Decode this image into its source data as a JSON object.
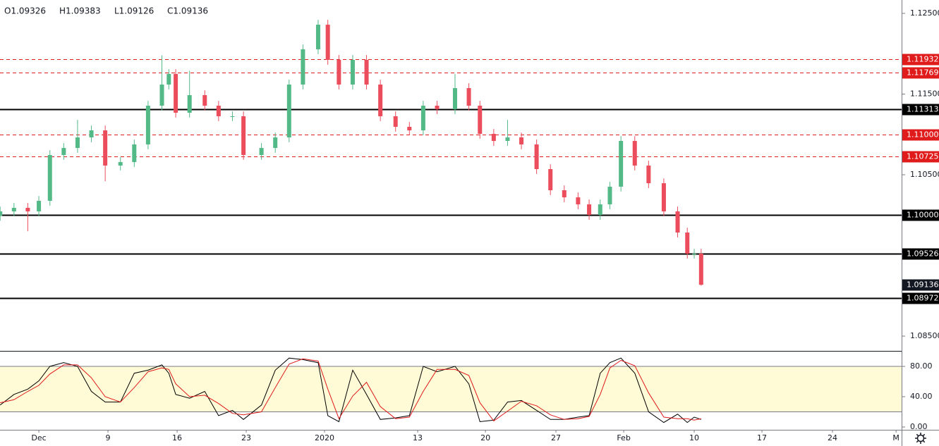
{
  "header": {
    "ohlc_text": [
      "O1.09326",
      "H1.09383",
      "L1.09126",
      "C1.09136"
    ]
  },
  "chart_data": [
    {
      "type": "candlestick",
      "x": [
        -2.8,
        -1.8,
        -0.8,
        0,
        0.8,
        1.8,
        2.8,
        3.8,
        4.8,
        5.9,
        6.9,
        7.9,
        8.9,
        9.4,
        9.9,
        10.9,
        12.0,
        13.0,
        14.0,
        14.8,
        16.1,
        17.1,
        18.1,
        19.1,
        20.2,
        20.9,
        21.7,
        22.7,
        23.7,
        24.7,
        25.8,
        26.8,
        27.8,
        28.8,
        30.1,
        31.1,
        31.9,
        32.9,
        33.9,
        34.9,
        36.0,
        37.0,
        38.0,
        39.0,
        39.8,
        40.6,
        41.3,
        42.1,
        43.1,
        44.1,
        45.2,
        46.2,
        46.9,
        47.4,
        47.9
      ],
      "open": [
        1.0999,
        1.10046,
        1.1009,
        1.10046,
        1.10177,
        1.10745,
        1.10832,
        1.10963,
        1.1105,
        1.10614,
        1.10657,
        1.10876,
        1.11356,
        1.11618,
        1.11749,
        1.11269,
        1.11487,
        1.11356,
        1.11225,
        1.11225,
        1.10745,
        1.10832,
        1.10963,
        1.11618,
        1.12055,
        1.1236,
        1.11924,
        1.11618,
        1.11924,
        1.11618,
        1.11225,
        1.11094,
        1.1105,
        1.11356,
        1.11312,
        1.11574,
        1.11356,
        1.11007,
        1.10919,
        1.10963,
        1.10876,
        1.1057,
        1.10308,
        1.1022,
        1.10133,
        1.10002,
        1.10133,
        1.10352,
        1.10919,
        1.10614,
        1.10395,
        1.10046,
        1.09784,
        1.09522,
        1.09522
      ],
      "high": [
        1.10106,
        1.1015,
        1.1015,
        1.10237,
        1.10805,
        1.10892,
        1.1118,
        1.1111,
        1.1111,
        1.10717,
        1.10936,
        1.11416,
        1.1198,
        1.11809,
        1.11809,
        1.1179,
        1.11547,
        1.11416,
        1.11285,
        1.11285,
        1.10892,
        1.11023,
        1.11678,
        1.12115,
        1.1242,
        1.1242,
        1.11984,
        1.11984,
        1.11984,
        1.11678,
        1.11285,
        1.11154,
        1.11416,
        1.11416,
        1.1175,
        1.11634,
        1.11416,
        1.11067,
        1.1118,
        1.11023,
        1.10936,
        1.1063,
        1.10368,
        1.1028,
        1.10193,
        1.10193,
        1.10412,
        1.10979,
        1.10979,
        1.10674,
        1.10455,
        1.10106,
        1.09844,
        1.09582,
        1.09582
      ],
      "low": [
        1.0993,
        1.09986,
        1.098,
        1.09986,
        1.10117,
        1.10685,
        1.10772,
        1.10903,
        1.1042,
        1.10554,
        1.10597,
        1.10816,
        1.11296,
        1.11558,
        1.11209,
        1.11209,
        1.11296,
        1.11165,
        1.11165,
        1.10685,
        1.10685,
        1.10772,
        1.10903,
        1.11558,
        1.11995,
        1.11864,
        1.11558,
        1.11558,
        1.11558,
        1.11165,
        1.11034,
        1.1099,
        1.1099,
        1.11252,
        1.11252,
        1.11296,
        1.10947,
        1.10859,
        1.10859,
        1.10816,
        1.1051,
        1.10248,
        1.1016,
        1.10073,
        1.09942,
        1.09942,
        1.10073,
        1.10292,
        1.10554,
        1.10335,
        1.09986,
        1.09724,
        1.09462,
        1.09462,
        1.09126
      ],
      "close": [
        1.10046,
        1.1009,
        1.10046,
        1.10177,
        1.10745,
        1.10832,
        1.10963,
        1.1105,
        1.10614,
        1.10657,
        1.10876,
        1.11356,
        1.11618,
        1.11749,
        1.11269,
        1.11487,
        1.11356,
        1.11225,
        1.11225,
        1.10745,
        1.10832,
        1.10963,
        1.11618,
        1.12055,
        1.1236,
        1.11924,
        1.11618,
        1.11924,
        1.11618,
        1.11225,
        1.11094,
        1.1105,
        1.11356,
        1.11312,
        1.11574,
        1.11356,
        1.11007,
        1.10919,
        1.10963,
        1.10876,
        1.1057,
        1.10308,
        1.1022,
        1.10133,
        1.10002,
        1.10133,
        1.10352,
        1.10919,
        1.10614,
        1.10395,
        1.10046,
        1.09784,
        1.09522,
        1.09522,
        1.09136
      ],
      "up_color": "#53b987",
      "down_color": "#eb4d5c",
      "xlim": [
        -2.81,
        62.4
      ],
      "ylim": [
        1.08317,
        1.12666
      ],
      "yticks": [
        {
          "value": 1.125,
          "label": "1.12500"
        },
        {
          "value": 1.115,
          "label": "1.11500"
        },
        {
          "value": 1.105,
          "label": "1.10500"
        },
        {
          "value": 1.085,
          "label": "1.08500"
        }
      ],
      "levels": [
        {
          "value": 1.11932,
          "label": "1.11932",
          "style": "dashed",
          "color": "#e01b1b"
        },
        {
          "value": 1.11769,
          "label": "1.11769",
          "style": "dashed",
          "color": "#e01b1b"
        },
        {
          "value": 1.11313,
          "label": "1.11313",
          "style": "solid",
          "color": "#000000"
        },
        {
          "value": 1.11,
          "label": "1.11000",
          "style": "dashed",
          "color": "#e01b1b"
        },
        {
          "value": 1.10725,
          "label": "1.10725",
          "style": "dashed",
          "color": "#e01b1b"
        },
        {
          "value": 1.1,
          "label": "1.10000",
          "style": "solid",
          "color": "#000000"
        },
        {
          "value": 1.09526,
          "label": "1.09526",
          "style": "solid",
          "color": "#000000"
        },
        {
          "value": 1.08972,
          "label": "1.08972",
          "style": "solid",
          "color": "#000000"
        }
      ],
      "last_price": {
        "value": 1.09136,
        "label": "1.09136",
        "color": "#131722"
      }
    },
    {
      "type": "line",
      "x": [
        -2.8,
        -1.8,
        -0.8,
        0,
        0.8,
        1.8,
        2.8,
        3.8,
        4.8,
        5.9,
        6.9,
        7.9,
        8.9,
        9.4,
        9.9,
        10.9,
        12.0,
        13.0,
        14.0,
        14.8,
        16.1,
        17.1,
        18.1,
        19.1,
        20.2,
        20.9,
        21.7,
        22.7,
        23.7,
        24.7,
        25.8,
        26.8,
        27.8,
        28.8,
        30.1,
        31.1,
        31.9,
        32.9,
        33.9,
        34.9,
        36.0,
        37.0,
        38.0,
        39.0,
        39.8,
        40.6,
        41.3,
        42.1,
        43.1,
        44.1,
        45.2,
        46.2,
        46.9,
        47.4,
        47.9
      ],
      "series": [
        {
          "color": "#000000",
          "values": [
            29,
            43,
            50,
            61,
            80,
            85,
            80,
            47,
            33,
            33,
            71,
            75,
            82,
            71,
            43,
            38,
            47,
            15,
            22,
            10,
            29,
            75,
            91,
            89,
            85,
            15,
            7,
            75,
            43,
            10,
            12,
            15,
            80,
            73,
            80,
            57,
            7,
            9,
            33,
            35,
            22,
            10,
            10,
            13,
            15,
            71,
            85,
            91,
            71,
            20,
            6,
            17,
            6,
            13,
            10
          ]
        },
        {
          "color": "#e01b1b",
          "values": [
            32,
            36,
            47,
            55,
            70,
            82,
            82,
            65,
            40,
            33,
            52,
            73,
            78,
            76,
            57,
            40,
            42,
            31,
            18,
            16,
            20,
            52,
            83,
            90,
            87,
            50,
            11,
            41,
            59,
            27,
            11,
            13,
            47,
            76,
            76,
            68,
            32,
            8,
            21,
            34,
            28,
            16,
            10,
            11,
            14,
            43,
            78,
            88,
            81,
            45,
            13,
            11,
            11,
            9,
            11
          ]
        }
      ],
      "band": [
        20,
        80
      ],
      "band_color": "#fffbd6",
      "xlim": [
        -2.81,
        62.4
      ],
      "ylim": [
        -3.7,
        100.5
      ],
      "yticks": [
        {
          "value": 80,
          "label": "80.00"
        },
        {
          "value": 40,
          "label": "40.00"
        },
        {
          "value": 0,
          "label": "0.00"
        }
      ],
      "xticks": [
        {
          "value": 0,
          "label": "Dec"
        },
        {
          "value": 5,
          "label": "9"
        },
        {
          "value": 10,
          "label": "16"
        },
        {
          "value": 15,
          "label": "23"
        },
        {
          "value": 20.66,
          "label": "2020"
        },
        {
          "value": 27.4,
          "label": "13"
        },
        {
          "value": 32.3,
          "label": "20"
        },
        {
          "value": 37.4,
          "label": "27"
        },
        {
          "value": 42.3,
          "label": "Feb"
        },
        {
          "value": 47.4,
          "label": "10"
        },
        {
          "value": 52.3,
          "label": "17"
        },
        {
          "value": 57.4,
          "label": "24"
        },
        {
          "value": 62.0,
          "label": "M"
        }
      ]
    }
  ]
}
